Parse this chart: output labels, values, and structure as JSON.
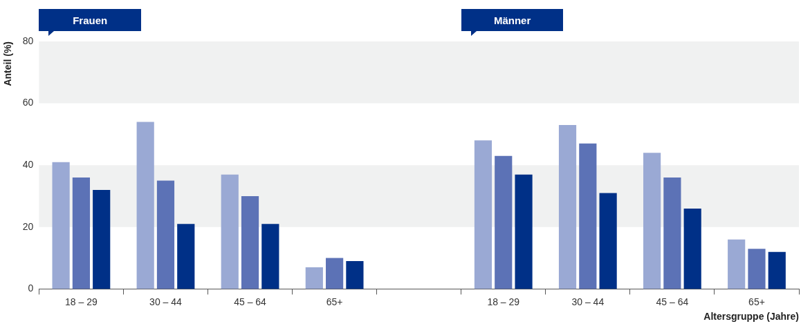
{
  "chart_data": {
    "type": "bar",
    "categories": [
      "18 – 29",
      "30 – 44",
      "45 – 64",
      "65+",
      null,
      "18 – 29",
      "30 – 44",
      "45 – 64",
      "65+"
    ],
    "series": [
      {
        "color": "#9aa9d4",
        "values": [
          41,
          54,
          37,
          7,
          null,
          48,
          53,
          44,
          16
        ]
      },
      {
        "color": "#5c72b6",
        "values": [
          36,
          35,
          30,
          10,
          null,
          43,
          47,
          36,
          13
        ]
      },
      {
        "color": "#003087",
        "values": [
          32,
          21,
          21,
          9,
          null,
          37,
          31,
          26,
          12
        ]
      }
    ],
    "ylabel": "Anteil (%)",
    "xlabel": "Altersgruppe (Jahre)",
    "ylim": [
      0,
      80
    ],
    "yticks": [
      0,
      20,
      40,
      60,
      80
    ],
    "bands": [
      {
        "axis": "y",
        "from": 20,
        "to": 40,
        "color": "#f0f1f1"
      },
      {
        "axis": "y",
        "from": 60,
        "to": 80,
        "color": "#f0f1f1"
      }
    ],
    "annotations": [
      "Frauen",
      "Männer"
    ],
    "grid": false,
    "legend": false
  }
}
